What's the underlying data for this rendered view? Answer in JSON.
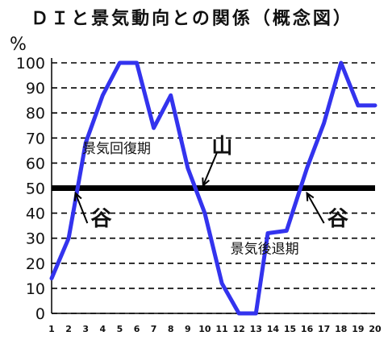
{
  "chart_data": {
    "type": "line",
    "title": "ＤＩと景気動向との関係（概念図）",
    "ylabel": "%",
    "xlabel": "",
    "x": [
      1,
      2,
      3,
      4,
      5,
      6,
      7,
      8,
      9,
      10,
      11,
      12,
      13,
      14,
      15,
      16,
      17,
      18,
      19,
      20
    ],
    "ylim": [
      0,
      100
    ],
    "xlim": [
      1,
      20
    ],
    "y_ticks": [
      0,
      10,
      20,
      30,
      40,
      50,
      60,
      70,
      80,
      90,
      100
    ],
    "x_tick_labels": [
      "1",
      "2",
      "3",
      "4",
      "5",
      "6",
      "7",
      "8",
      "9",
      "10",
      "11",
      "12",
      "13",
      "14",
      "15",
      "16",
      "17",
      "18",
      "19",
      "20"
    ],
    "grid": "horizontal dashed",
    "reference_line": 50,
    "series": [
      {
        "points": [
          [
            1,
            14
          ],
          [
            2,
            30
          ],
          [
            3,
            68
          ],
          [
            4,
            87
          ],
          [
            5,
            100
          ],
          [
            6,
            100
          ],
          [
            7,
            74
          ],
          [
            8,
            87
          ],
          [
            9,
            58
          ],
          [
            10,
            40
          ],
          [
            11,
            12
          ],
          [
            12,
            0
          ],
          [
            13,
            0
          ],
          [
            13.7,
            32
          ],
          [
            14.8,
            33
          ],
          [
            16,
            58
          ],
          [
            17,
            76
          ],
          [
            18,
            100
          ],
          [
            19,
            83
          ],
          [
            20,
            83
          ]
        ]
      }
    ],
    "color": "#3333ee",
    "annotations": [
      {
        "text": "景気回復期",
        "x": 2.8,
        "y": 64
      },
      {
        "text": "山",
        "x": 10.4,
        "y": 64
      },
      {
        "text": "谷",
        "x": 3.3,
        "y": 35
      },
      {
        "text": "景気後退期",
        "x": 11.5,
        "y": 24
      },
      {
        "text": "谷",
        "x": 17.2,
        "y": 35
      }
    ]
  }
}
